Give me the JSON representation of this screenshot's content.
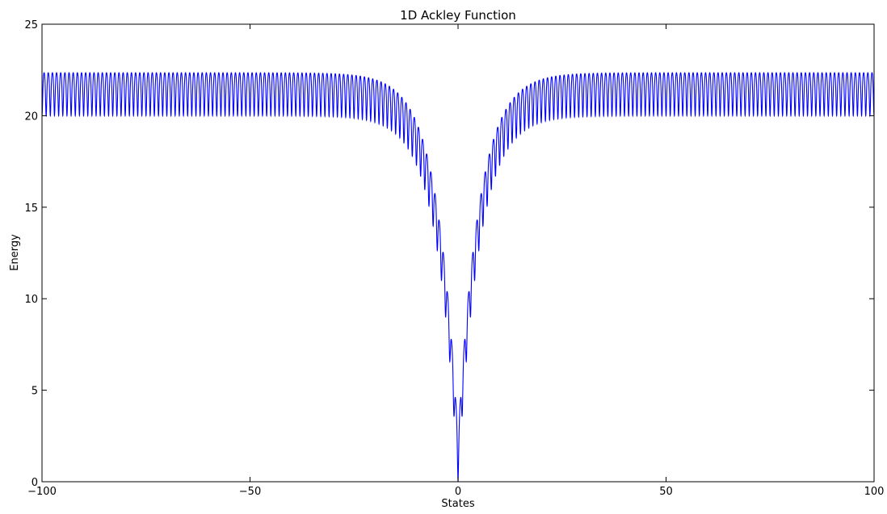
{
  "chart_data": {
    "type": "line",
    "title": "1D Ackley Function",
    "xlabel": "States",
    "ylabel": "Energy",
    "xlim": [
      -100,
      100
    ],
    "ylim": [
      0,
      25
    ],
    "xticks": [
      -100,
      -50,
      0,
      50,
      100
    ],
    "xtick_labels": [
      "−100",
      "−50",
      "0",
      "50",
      "100"
    ],
    "yticks": [
      0,
      5,
      10,
      15,
      20,
      25
    ],
    "ytick_labels": [
      "0",
      "5",
      "10",
      "15",
      "20",
      "25"
    ],
    "grid": false,
    "legend": "none",
    "series": [
      {
        "function": "f(x) = -20*exp(-0.2*sqrt(x^2)) - exp(cos(2*pi*x)) + 20 + e",
        "x_start": -100,
        "x_end": 100,
        "color": "#0000ff"
      }
    ]
  }
}
